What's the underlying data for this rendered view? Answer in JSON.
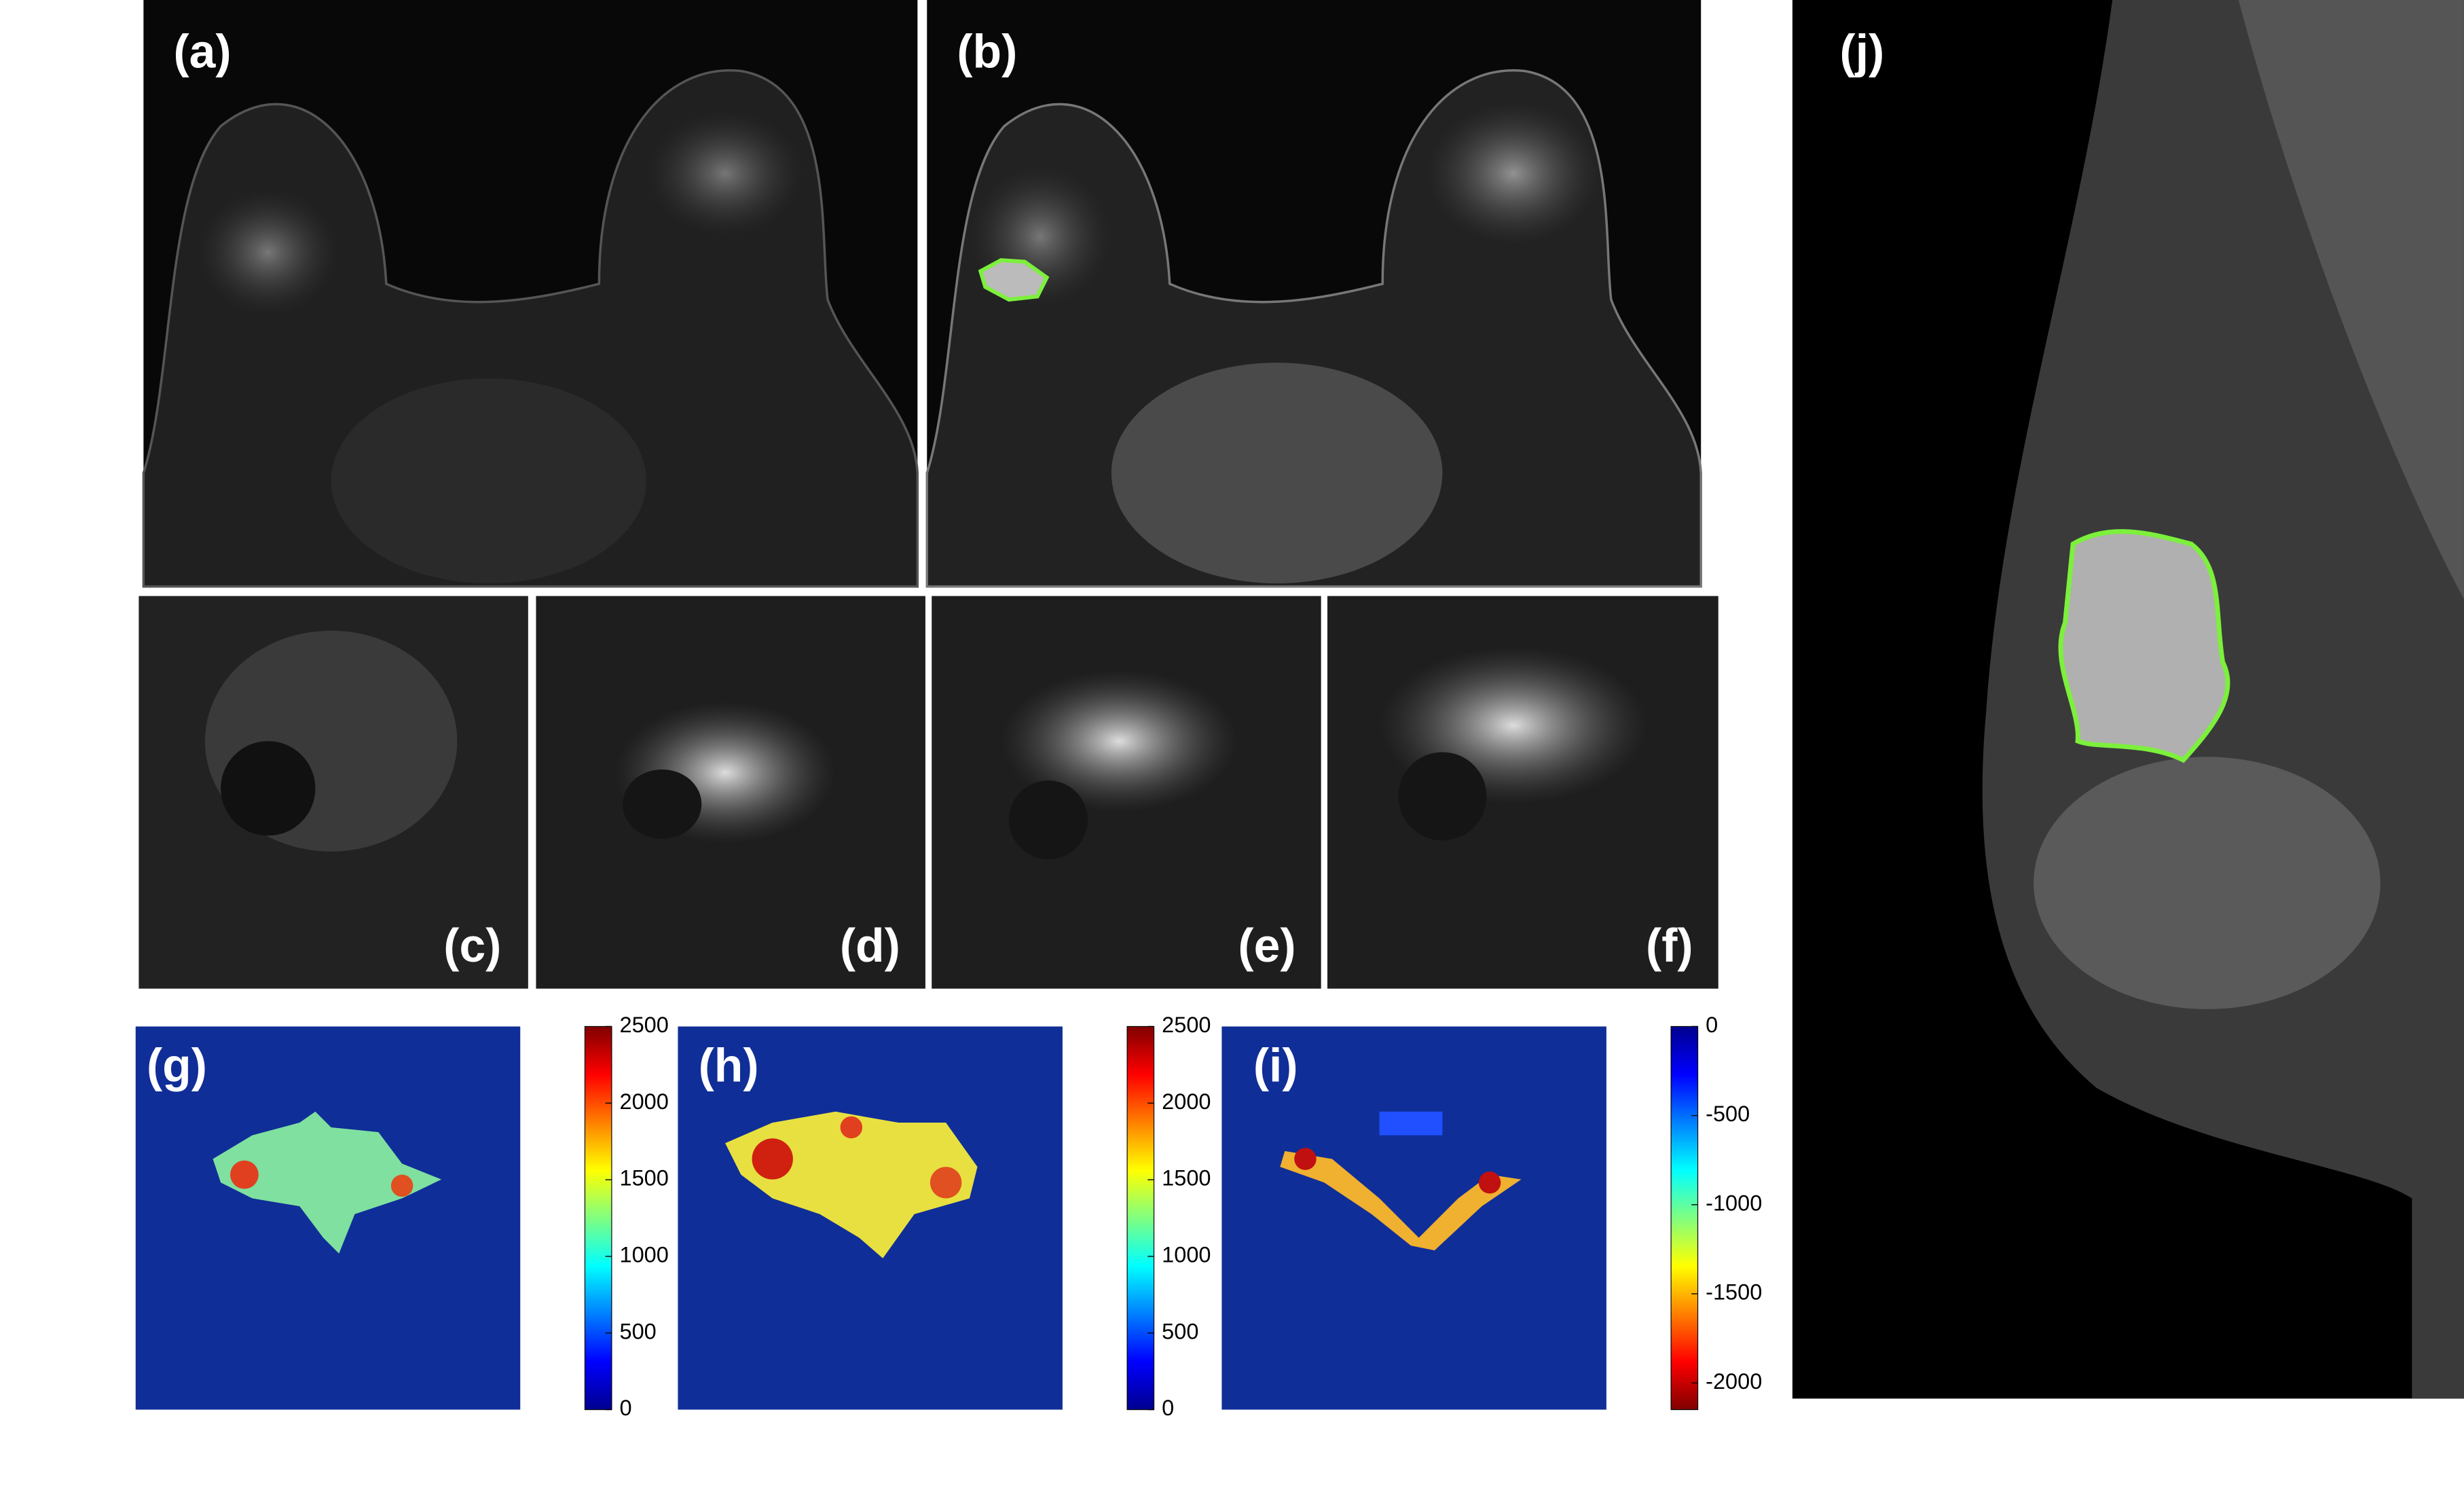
{
  "panels": [
    {
      "label": "(a)"
    },
    {
      "label": "(b)"
    },
    {
      "label": "(c)"
    },
    {
      "label": "(d)"
    },
    {
      "label": "(e)"
    },
    {
      "label": "(f)"
    },
    {
      "label": "(g)"
    },
    {
      "label": "(h)"
    },
    {
      "label": "(i)"
    },
    {
      "label": "(j)"
    }
  ],
  "colorbars": [
    {
      "lim": [
        0,
        2500
      ],
      "ticks": [
        0,
        500,
        1000,
        1500,
        2000,
        2500
      ],
      "colormap": "jet"
    },
    {
      "lim": [
        0,
        2500
      ],
      "ticks": [
        0,
        500,
        1000,
        1500,
        2000,
        2500
      ],
      "colormap": "jet"
    },
    {
      "lim": [
        -2150,
        0
      ],
      "ticks": [
        0,
        -500,
        -1000,
        -1500,
        -2000
      ],
      "colormap": "jet"
    }
  ]
}
